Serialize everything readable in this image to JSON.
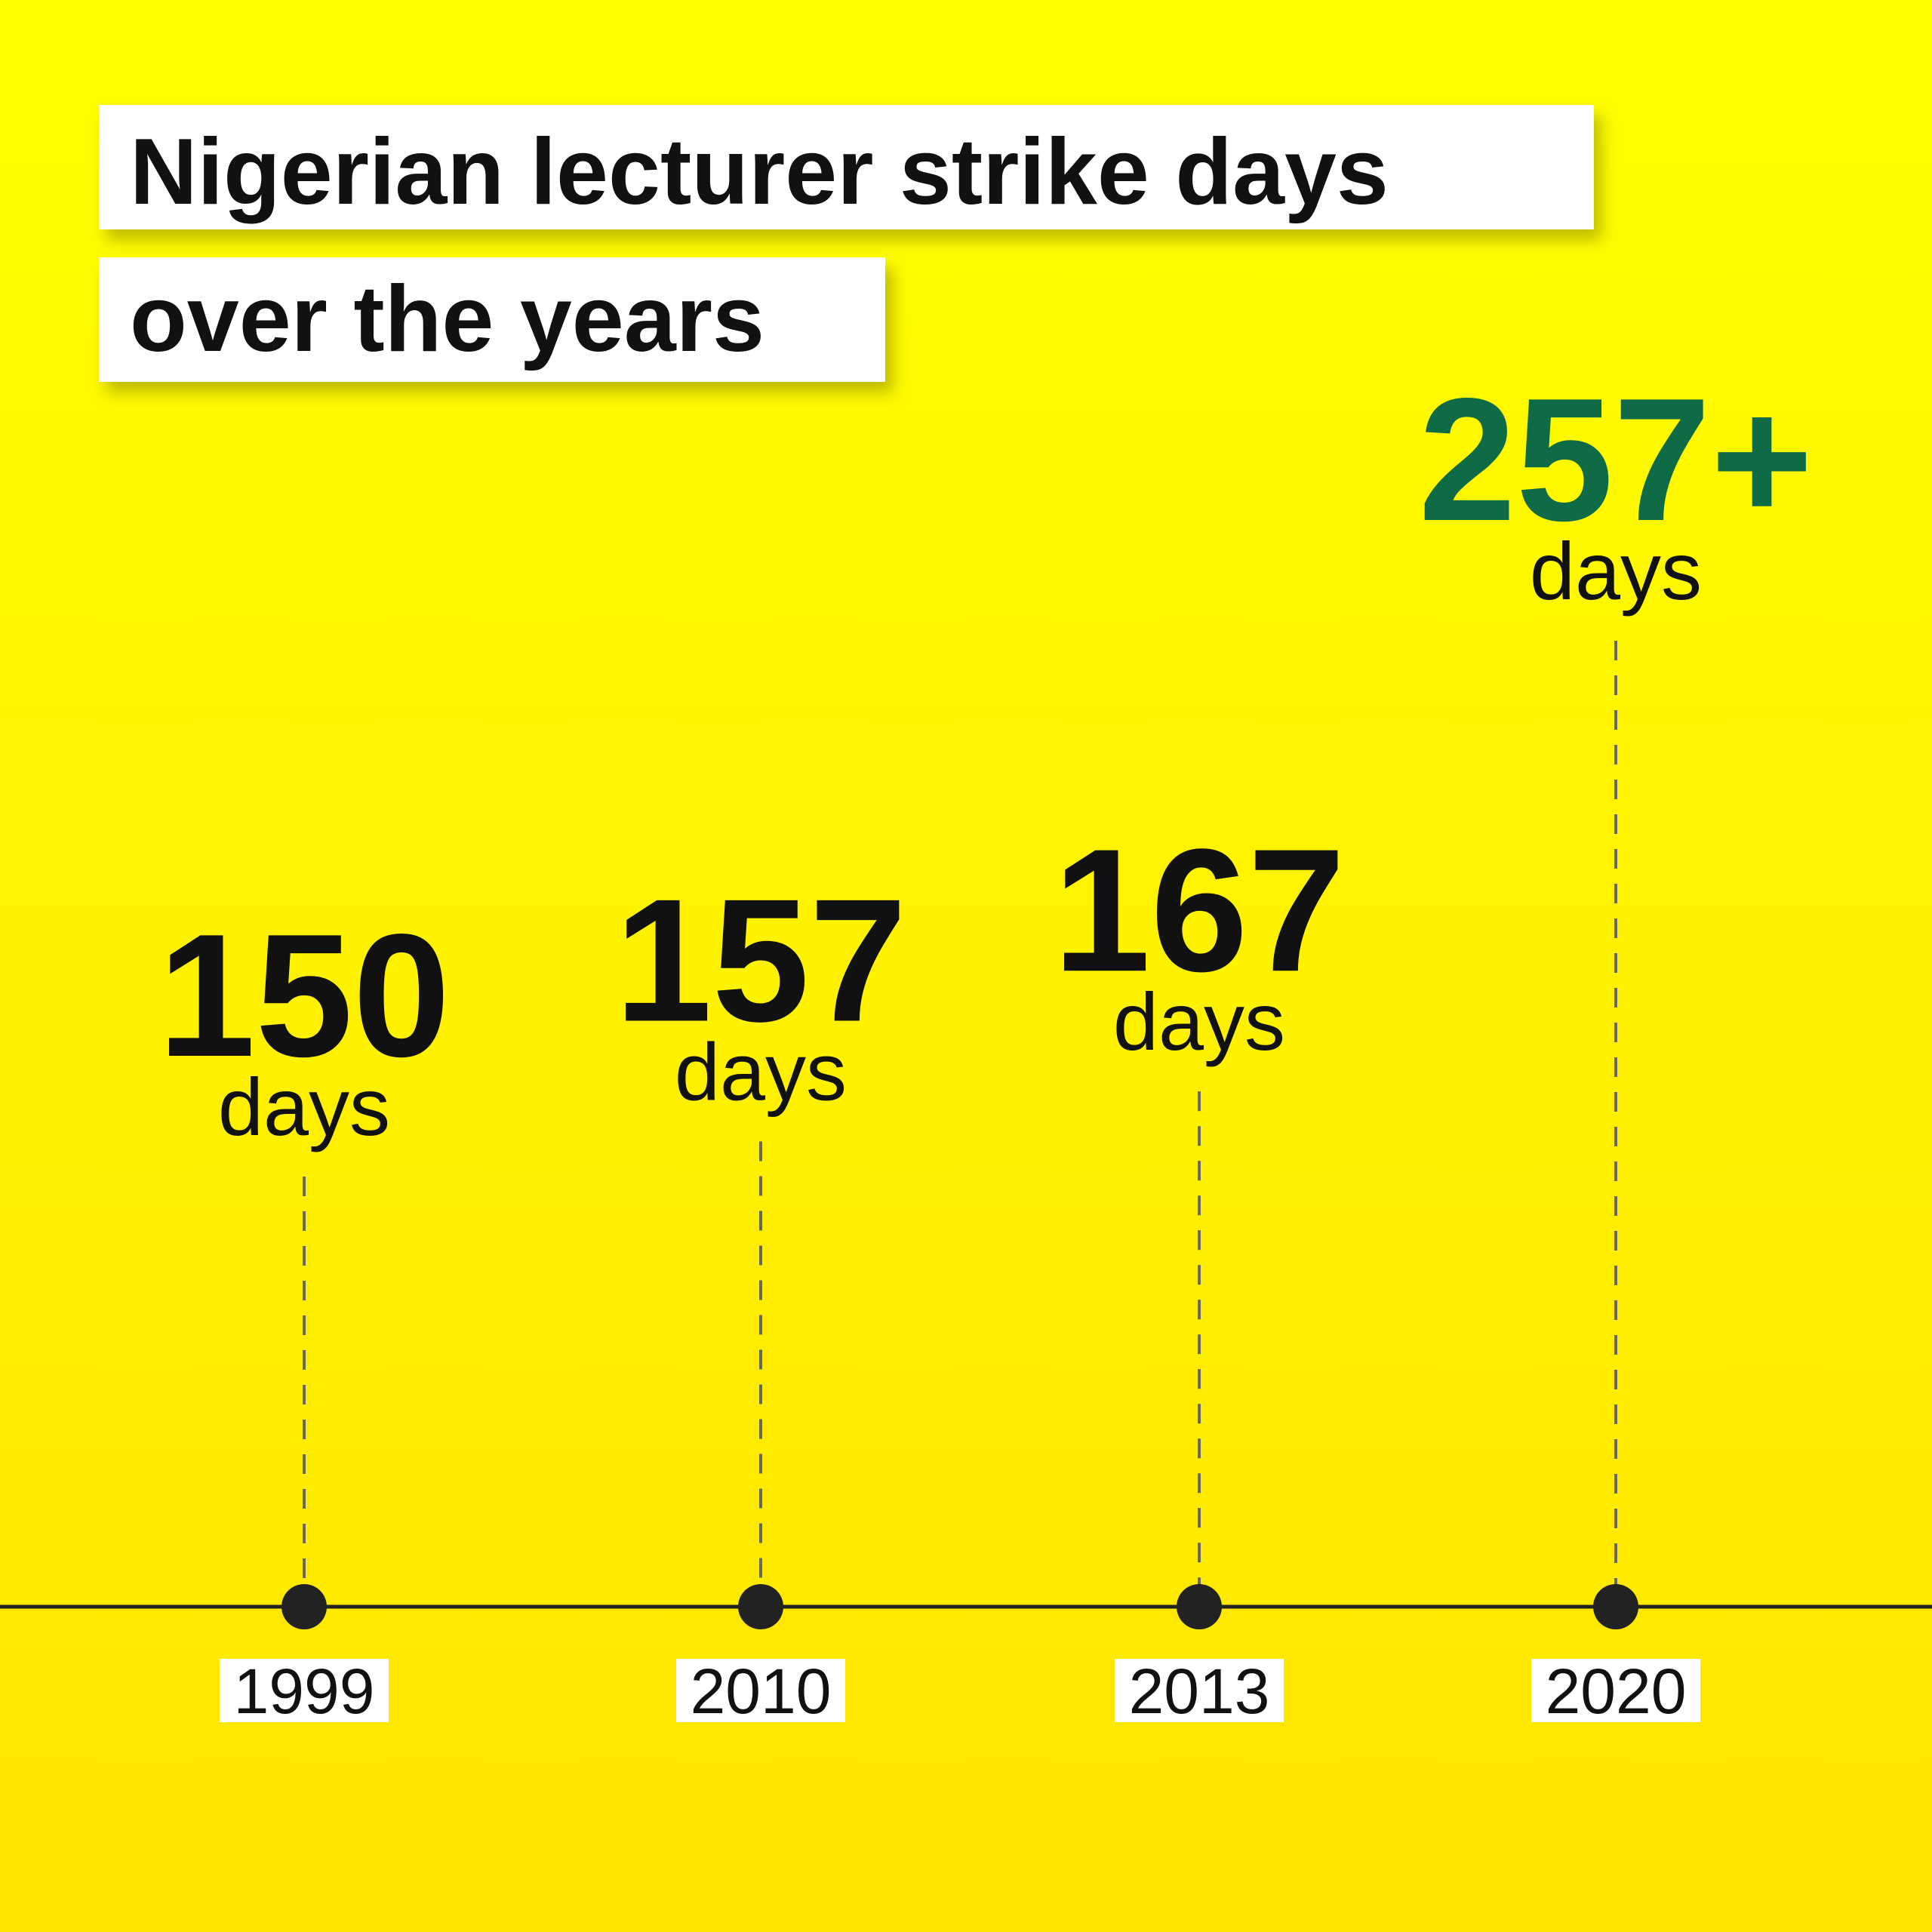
{
  "chart_data": {
    "type": "timeline",
    "title": [
      "Nigerian lecturer strike days",
      "over the years"
    ],
    "categories": [
      "1999",
      "2010",
      "2013",
      "2020"
    ],
    "values": [
      150,
      157,
      167,
      257
    ],
    "value_labels": [
      "150",
      "157",
      "167",
      "257+"
    ],
    "unit": "days",
    "colors": [
      "#111111",
      "#111111",
      "#111111",
      "#0e6b45"
    ]
  }
}
